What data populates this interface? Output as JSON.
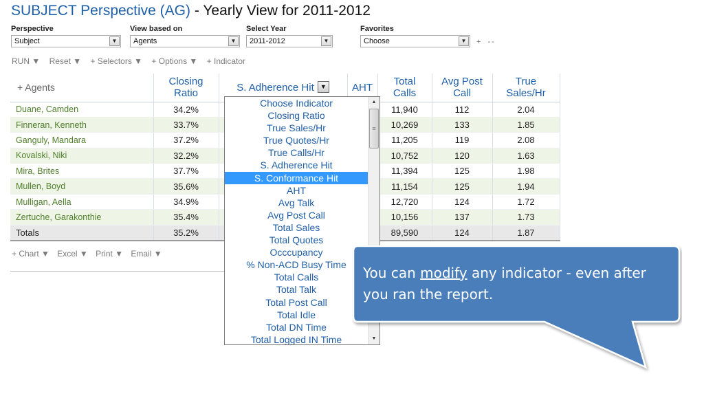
{
  "title": {
    "perspective": "SUBJECT Perspective (AG)",
    "sep": " - ",
    "view": "Yearly View for 2011-2012"
  },
  "filters": {
    "perspective": {
      "label": "Perspective",
      "value": "Subject"
    },
    "view_based_on": {
      "label": "View based on",
      "value": "Agents"
    },
    "select_year": {
      "label": "Select Year",
      "value": "2011-2012"
    },
    "favorites": {
      "label": "Favorites",
      "value": "Choose",
      "add": "+",
      "remove": "--"
    }
  },
  "toolbar": {
    "run": "RUN ▼",
    "reset": "Reset ▼",
    "selectors": "+ Selectors ▼",
    "options": "+ Options ▼",
    "indicator": "+ Indicator"
  },
  "bottom_toolbar": {
    "chart": "+ Chart ▼",
    "excel": "Excel ▼",
    "print": "Print ▼",
    "email": "Email ▼"
  },
  "table": {
    "headers": {
      "agents": "+ Agents",
      "closing_ratio_1": "Closing",
      "closing_ratio_2": "Ratio",
      "s_adherence": "S. Adherence Hit",
      "aht": "AHT",
      "total_calls_1": "Total",
      "total_calls_2": "Calls",
      "avg_post_1": "Avg Post",
      "avg_post_2": "Call",
      "true_sales_1": "True",
      "true_sales_2": "Sales/Hr"
    },
    "rows": [
      {
        "name": "Duane, Camden",
        "closing": "34.2%",
        "calls": "11,940",
        "post": "112",
        "sales": "2.04"
      },
      {
        "name": "Finneran, Kenneth",
        "closing": "33.7%",
        "calls": "10,269",
        "post": "133",
        "sales": "1.85"
      },
      {
        "name": "Ganguly, Mandara",
        "closing": "37.2%",
        "calls": "11,205",
        "post": "119",
        "sales": "2.08"
      },
      {
        "name": "Kovalski, Niki",
        "closing": "32.2%",
        "calls": "10,752",
        "post": "120",
        "sales": "1.63"
      },
      {
        "name": "Mira, Brites",
        "closing": "37.7%",
        "calls": "11,394",
        "post": "125",
        "sales": "1.98"
      },
      {
        "name": "Mullen, Boyd",
        "closing": "35.6%",
        "calls": "11,154",
        "post": "125",
        "sales": "1.94"
      },
      {
        "name": "Mulligan, Aella",
        "closing": "34.9%",
        "calls": "12,720",
        "post": "124",
        "sales": "1.72"
      },
      {
        "name": "Zertuche, Garakonthie",
        "closing": "35.4%",
        "calls": "10,156",
        "post": "137",
        "sales": "1.73"
      }
    ],
    "totals": {
      "name": "Totals",
      "closing": "35.2%",
      "calls": "89,590",
      "post": "124",
      "sales": "1.87"
    }
  },
  "dropdown": {
    "items": [
      "Choose Indicator",
      "Closing Ratio",
      "True Sales/Hr",
      "True Quotes/Hr",
      "True Calls/Hr",
      "S. Adherence Hit",
      "S. Conformance Hit",
      "AHT",
      "Avg Talk",
      "Avg Post Call",
      "Total Sales",
      "Total Quotes",
      "Occcupancy",
      "% Non-ACD Busy Time",
      "Total Calls",
      "Total Talk",
      "Total Post Call",
      "Total Idle",
      "Total DN Time",
      "Total Logged IN Time"
    ],
    "selected": "S. Conformance Hit"
  },
  "callout": {
    "text_before": "You can ",
    "text_link": "modify",
    "text_after": " any indicator  - even after you ran the report."
  },
  "colors": {
    "title_blue": "#1f5fa8",
    "agent_green": "#4f7f2a",
    "row_alt": "#eef5e6",
    "selected_item": "#3399ff",
    "callout_fill": "#4a7ebb"
  }
}
